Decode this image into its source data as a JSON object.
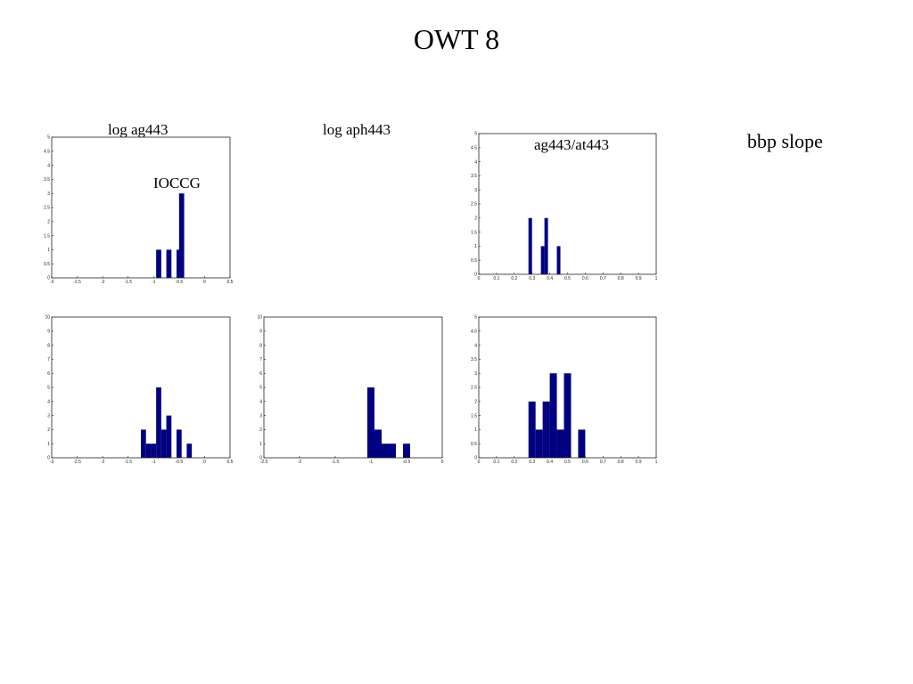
{
  "slide": {
    "title": "OWT 8"
  },
  "labels": {
    "log_ag443": "log ag443",
    "ioccg": "IOCCG",
    "log_aph443": "log aph443",
    "ag443_at443": "ag443/at443",
    "bbp_slope": "bbp slope"
  },
  "bar_color": "#000080",
  "chart_data": [
    {
      "id": "top-log-ag443",
      "type": "bar",
      "title": "log ag443",
      "annotation": "IOCCG",
      "xlim": [
        -3,
        0.5
      ],
      "ylim": [
        0,
        5
      ],
      "xticks": [
        "-3",
        "-2.5",
        "-2",
        "-1.5",
        "-1",
        "-0.5",
        "0",
        "0.5"
      ],
      "yticks": [
        "0",
        "0.5",
        "1",
        "1.5",
        "2",
        "2.5",
        "3",
        "3.5",
        "4",
        "4.5",
        "5"
      ],
      "bin_width": 0.1,
      "bins": [
        -0.9,
        -0.7,
        -0.5,
        -0.45
      ],
      "values": [
        1,
        1,
        1,
        3
      ]
    },
    {
      "id": "top-ag443-at443",
      "type": "bar",
      "title": "ag443/at443",
      "xlim": [
        0,
        1
      ],
      "ylim": [
        0,
        5
      ],
      "xticks": [
        "0",
        "0.1",
        "0.2",
        "0.3",
        "0.4",
        "0.5",
        "0.6",
        "0.7",
        "0.8",
        "0.9",
        "1"
      ],
      "yticks": [
        "0",
        "0.5",
        "1",
        "1.5",
        "2",
        "2.5",
        "3",
        "3.5",
        "4",
        "4.5",
        "5"
      ],
      "bin_width": 0.02,
      "bins": [
        0.29,
        0.36,
        0.38,
        0.45
      ],
      "values": [
        2,
        1,
        2,
        1
      ]
    },
    {
      "id": "bottom-log-ag443",
      "type": "bar",
      "xlim": [
        -3,
        0.5
      ],
      "ylim": [
        0,
        10
      ],
      "xticks": [
        "-3",
        "-2.5",
        "-2",
        "-1.5",
        "-1",
        "-0.5",
        "0",
        "0.5"
      ],
      "yticks": [
        "0",
        "1",
        "2",
        "3",
        "4",
        "5",
        "6",
        "7",
        "8",
        "9",
        "10"
      ],
      "bin_width": 0.1,
      "bins": [
        -1.2,
        -1.1,
        -1.0,
        -0.9,
        -0.8,
        -0.7,
        -0.5,
        -0.3
      ],
      "values": [
        2,
        1,
        1,
        5,
        2,
        3,
        2,
        1
      ]
    },
    {
      "id": "bottom-log-aph443",
      "type": "bar",
      "xlim": [
        -2.5,
        0
      ],
      "ylim": [
        0,
        10
      ],
      "xticks": [
        "-2.5",
        "-2",
        "-1.5",
        "-1",
        "-0.5",
        "0"
      ],
      "yticks": [
        "0",
        "1",
        "2",
        "3",
        "4",
        "5",
        "6",
        "7",
        "8",
        "9",
        "10"
      ],
      "bin_width": 0.1,
      "bins": [
        -1.0,
        -0.9,
        -0.8,
        -0.7,
        -0.5
      ],
      "values": [
        5,
        2,
        1,
        1,
        1
      ]
    },
    {
      "id": "bottom-ag443-at443",
      "type": "bar",
      "xlim": [
        0,
        1
      ],
      "ylim": [
        0,
        5
      ],
      "xticks": [
        "0",
        "0.1",
        "0.2",
        "0.3",
        "0.4",
        "0.5",
        "0.6",
        "0.7",
        "0.8",
        "0.9",
        "1"
      ],
      "yticks": [
        "0",
        "0.5",
        "1",
        "1.5",
        "2",
        "2.5",
        "3",
        "3.5",
        "4",
        "4.5",
        "5"
      ],
      "bin_width": 0.04,
      "bins": [
        0.3,
        0.34,
        0.38,
        0.42,
        0.46,
        0.5,
        0.58
      ],
      "values": [
        2,
        1,
        2,
        3,
        1,
        3,
        1
      ]
    }
  ]
}
